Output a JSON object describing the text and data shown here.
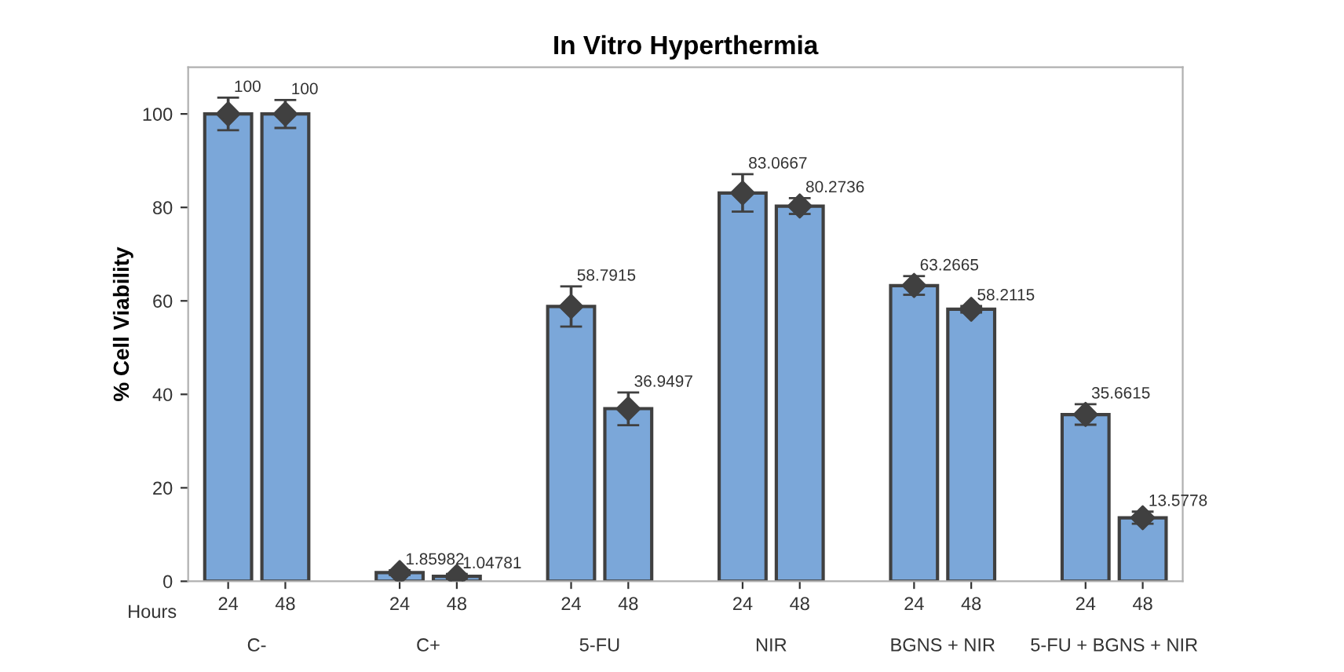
{
  "chart_data": {
    "type": "bar",
    "title": "In Vitro Hyperthermia",
    "ylabel": "% Cell Viability",
    "categories": [
      "24",
      "48",
      null,
      "24",
      "48",
      null,
      "24",
      "48",
      null,
      "24",
      "48",
      null,
      "24",
      "48",
      null,
      "24",
      "48"
    ],
    "series": [
      {
        "color": "#7ba7d9",
        "values": [
          100,
          100,
          null,
          1.85982,
          1.04781,
          null,
          58.7915,
          36.9497,
          null,
          83.0667,
          80.2736,
          null,
          63.2665,
          58.2115,
          null,
          35.6615,
          13.5778
        ],
        "value_labels": [
          "100",
          "100",
          null,
          "1.85982",
          "1.04781",
          null,
          "58.7915",
          "36.9497",
          null,
          "83.0667",
          "80.2736",
          null,
          "63.2665",
          "58.2115",
          null,
          "35.6615",
          "13.5778"
        ]
      },
      {
        "type": "scatter",
        "color": "#404040",
        "marker": "diamond",
        "values": [
          100,
          100,
          null,
          1.86,
          1.05,
          null,
          58.8,
          36.9,
          null,
          83.1,
          80.3,
          null,
          63.3,
          58.2,
          null,
          35.7,
          13.6
        ],
        "errors": [
          3.5,
          3,
          null,
          0.5,
          0.5,
          null,
          4.3,
          3.5,
          null,
          4,
          1.7,
          null,
          2,
          0.7,
          null,
          2.2,
          1.3
        ]
      }
    ],
    "annotations": [
      "Hours",
      "C-",
      "C+",
      "5-FU",
      "NIR",
      "BGNS + NIR",
      "5-FU + BGNS + NIR"
    ],
    "ylim": [
      0,
      110
    ],
    "yticks": [
      0,
      20,
      40,
      60,
      80,
      100
    ],
    "grid": false,
    "legend": false
  }
}
